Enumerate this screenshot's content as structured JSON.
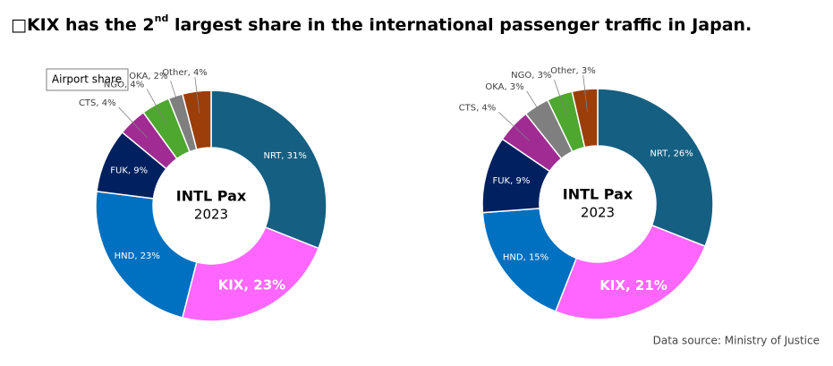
{
  "title": [
    "□KIX has the 2",
    "nd",
    " largest share in the international passenger traffic in Japan."
  ],
  "source": "Data source: Ministry of Justice",
  "chart_data": [
    {
      "type": "donut",
      "legend_box": "Airport share",
      "center_title": "INTL Pax",
      "center_subtitle": "2023",
      "values": [
        31,
        23,
        23,
        9,
        4,
        4,
        2,
        4
      ],
      "value_labels": [
        "NRT, 31%",
        "KIX, 23%",
        "HND, 23%",
        "FUK, 9%",
        "CTS, 4%",
        "NGO, 4%",
        "OKA, 2%",
        "Other, 4%"
      ],
      "colors": [
        "#155f82",
        "#ff66ff",
        "#0070c0",
        "#002060",
        "#a02b93",
        "#4ea72e",
        "#7f7f7f",
        "#9c3e0a"
      ]
    },
    {
      "type": "donut",
      "center_title": "INTL Pax",
      "center_subtitle": "2023",
      "values": [
        26,
        21,
        15,
        9,
        4,
        3,
        3,
        3
      ],
      "value_labels": [
        "NRT, 26%",
        "KIX, 21%",
        "HND, 15%",
        "FUK, 9%",
        "CTS, 4%",
        "OKA, 3%",
        "NGO, 3%",
        "Other, 3%"
      ],
      "colors": [
        "#155f82",
        "#ff66ff",
        "#0070c0",
        "#002060",
        "#a02b93",
        "#7f7f7f",
        "#4ea72e",
        "#9c3e0a"
      ]
    }
  ]
}
